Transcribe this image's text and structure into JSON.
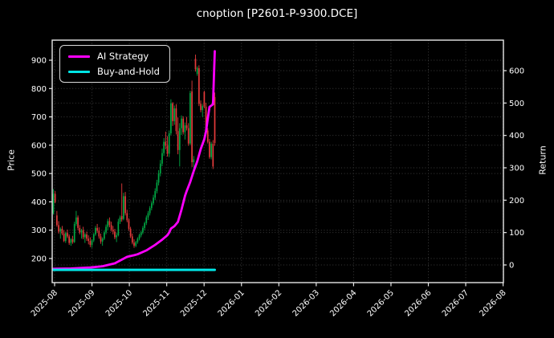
{
  "chart_data": {
    "type": "candlestick",
    "title": "cnoption [P2601-P-9300.DCE]",
    "left_axis": {
      "label": "Price",
      "ticks": [
        200,
        300,
        400,
        500,
        600,
        700,
        800,
        900
      ]
    },
    "right_axis": {
      "label": "Return",
      "ticks": [
        0,
        100,
        200,
        300,
        400,
        500,
        600
      ]
    },
    "x_ticks": [
      "2025-08",
      "2025-09",
      "2025-10",
      "2025-11",
      "2025-12",
      "2026-01",
      "2026-02",
      "2026-03",
      "2026-04",
      "2026-05",
      "2026-06",
      "2026-07",
      "2026-08"
    ],
    "grid": "dotted",
    "legend": [
      {
        "label": "AI Strategy",
        "color": "#ff00ff"
      },
      {
        "label": "Buy-and-Hold",
        "color": "#00e5e5"
      }
    ],
    "colors": {
      "background": "#000000",
      "text": "#ffffff",
      "grid": "#3a3a3a",
      "spine": "#e8e8e8",
      "up": "#00a844",
      "down": "#e43b3b",
      "ai_strategy": "#ff00ff",
      "buy_and_hold": "#00e5e5"
    },
    "candles": [
      [
        "2025-08-01",
        360,
        445,
        355,
        428
      ],
      [
        "2025-08-04",
        428,
        438,
        395,
        400
      ],
      [
        "2025-08-05",
        352,
        368,
        312,
        318
      ],
      [
        "2025-08-06",
        318,
        332,
        288,
        295
      ],
      [
        "2025-08-07",
        295,
        310,
        270,
        305
      ],
      [
        "2025-08-08",
        305,
        315,
        282,
        288
      ],
      [
        "2025-08-11",
        288,
        300,
        258,
        262
      ],
      [
        "2025-08-12",
        262,
        295,
        255,
        290
      ],
      [
        "2025-08-13",
        290,
        302,
        272,
        278
      ],
      [
        "2025-08-14",
        278,
        285,
        248,
        255
      ],
      [
        "2025-08-15",
        255,
        272,
        245,
        268
      ],
      [
        "2025-08-18",
        268,
        280,
        252,
        258
      ],
      [
        "2025-08-19",
        258,
        330,
        255,
        322
      ],
      [
        "2025-08-20",
        322,
        368,
        315,
        345
      ],
      [
        "2025-08-21",
        345,
        352,
        300,
        308
      ],
      [
        "2025-08-22",
        308,
        318,
        285,
        292
      ],
      [
        "2025-08-25",
        292,
        305,
        270,
        300
      ],
      [
        "2025-08-26",
        300,
        312,
        268,
        275
      ],
      [
        "2025-08-27",
        275,
        290,
        255,
        285
      ],
      [
        "2025-08-28",
        285,
        295,
        262,
        270
      ],
      [
        "2025-08-29",
        270,
        282,
        250,
        262
      ],
      [
        "2025-09-01",
        262,
        275,
        240,
        248
      ],
      [
        "2025-09-02",
        248,
        268,
        238,
        264
      ],
      [
        "2025-09-03",
        264,
        290,
        258,
        285
      ],
      [
        "2025-09-04",
        285,
        315,
        280,
        308
      ],
      [
        "2025-09-05",
        308,
        322,
        290,
        298
      ],
      [
        "2025-09-08",
        298,
        310,
        270,
        278
      ],
      [
        "2025-09-09",
        278,
        288,
        252,
        260
      ],
      [
        "2025-09-10",
        260,
        275,
        245,
        270
      ],
      [
        "2025-09-11",
        270,
        298,
        265,
        292
      ],
      [
        "2025-09-12",
        292,
        320,
        285,
        312
      ],
      [
        "2025-09-15",
        312,
        340,
        300,
        332
      ],
      [
        "2025-09-16",
        332,
        345,
        310,
        318
      ],
      [
        "2025-09-17",
        318,
        330,
        295,
        302
      ],
      [
        "2025-09-18",
        302,
        315,
        285,
        295
      ],
      [
        "2025-09-19",
        295,
        305,
        268,
        275
      ],
      [
        "2025-09-22",
        275,
        290,
        258,
        282
      ],
      [
        "2025-09-23",
        282,
        340,
        278,
        330
      ],
      [
        "2025-09-24",
        330,
        352,
        322,
        345
      ],
      [
        "2025-09-25",
        350,
        465,
        330,
        338
      ],
      [
        "2025-09-26",
        340,
        432,
        335,
        420
      ],
      [
        "2025-09-29",
        420,
        435,
        352,
        360
      ],
      [
        "2025-09-30",
        360,
        372,
        328,
        335
      ],
      [
        "2025-10-01",
        335,
        342,
        298,
        305
      ],
      [
        "2025-10-02",
        305,
        312,
        272,
        278
      ],
      [
        "2025-10-03",
        278,
        288,
        250,
        256
      ],
      [
        "2025-10-06",
        256,
        268,
        238,
        245
      ],
      [
        "2025-10-07",
        245,
        262,
        240,
        258
      ],
      [
        "2025-10-08",
        258,
        275,
        252,
        270
      ],
      [
        "2025-10-09",
        270,
        288,
        264,
        282
      ],
      [
        "2025-10-10",
        282,
        298,
        275,
        292
      ],
      [
        "2025-10-13",
        292,
        315,
        286,
        308
      ],
      [
        "2025-10-14",
        308,
        330,
        300,
        325
      ],
      [
        "2025-10-15",
        325,
        352,
        318,
        345
      ],
      [
        "2025-10-16",
        345,
        368,
        336,
        360
      ],
      [
        "2025-10-17",
        360,
        385,
        352,
        378
      ],
      [
        "2025-10-20",
        378,
        402,
        370,
        395
      ],
      [
        "2025-10-21",
        395,
        425,
        388,
        415
      ],
      [
        "2025-10-22",
        415,
        448,
        406,
        438
      ],
      [
        "2025-10-23",
        438,
        478,
        430,
        468
      ],
      [
        "2025-10-24",
        468,
        512,
        458,
        500
      ],
      [
        "2025-10-27",
        500,
        548,
        490,
        535
      ],
      [
        "2025-10-28",
        535,
        588,
        526,
        572
      ],
      [
        "2025-10-29",
        572,
        625,
        562,
        612
      ],
      [
        "2025-10-30",
        612,
        648,
        585,
        598
      ],
      [
        "2025-10-31",
        598,
        632,
        560,
        570
      ],
      [
        "2025-11-03",
        570,
        652,
        558,
        642
      ],
      [
        "2025-11-04",
        642,
        762,
        635,
        748
      ],
      [
        "2025-11-05",
        748,
        752,
        668,
        685
      ],
      [
        "2025-11-06",
        685,
        740,
        672,
        730
      ],
      [
        "2025-11-07",
        730,
        745,
        638,
        650
      ],
      [
        "2025-11-10",
        650,
        698,
        568,
        583
      ],
      [
        "2025-11-11",
        583,
        678,
        525,
        660
      ],
      [
        "2025-11-12",
        660,
        705,
        636,
        694
      ],
      [
        "2025-11-13",
        694,
        702,
        638,
        646
      ],
      [
        "2025-11-14",
        646,
        680,
        620,
        670
      ],
      [
        "2025-11-17",
        670,
        700,
        652,
        660
      ],
      [
        "2025-11-18",
        660,
        678,
        598,
        606
      ],
      [
        "2025-11-19",
        606,
        792,
        600,
        784
      ],
      [
        "2025-11-20",
        790,
        828,
        523,
        540
      ],
      [
        "2025-11-21",
        540,
        562,
        505,
        550
      ],
      [
        "2025-11-24",
        905,
        920,
        860,
        868
      ],
      [
        "2025-11-25",
        852,
        878,
        845,
        872
      ],
      [
        "2025-11-26",
        872,
        882,
        738,
        746
      ],
      [
        "2025-11-27",
        746,
        758,
        716,
        724
      ],
      [
        "2025-11-28",
        724,
        745,
        700,
        738
      ],
      [
        "2025-12-01",
        788,
        792,
        730,
        736
      ],
      [
        "2025-12-02",
        736,
        750,
        645,
        652
      ],
      [
        "2025-12-03",
        652,
        660,
        606,
        612
      ],
      [
        "2025-12-04",
        612,
        622,
        552,
        558
      ],
      [
        "2025-12-05",
        558,
        612,
        550,
        605
      ],
      [
        "2025-12-08",
        605,
        618,
        516,
        525
      ],
      [
        "2025-12-09",
        770,
        786,
        598,
        608
      ]
    ],
    "series": [
      {
        "name": "AI Strategy",
        "axis": "right",
        "color": "#ff00ff",
        "width": 2.8,
        "points": [
          [
            0,
            -12
          ],
          [
            10,
            -11
          ],
          [
            21,
            -8
          ],
          [
            28,
            -4
          ],
          [
            35,
            5
          ],
          [
            42,
            25
          ],
          [
            46,
            30
          ],
          [
            48,
            33
          ],
          [
            53,
            45
          ],
          [
            58,
            62
          ],
          [
            62,
            78
          ],
          [
            65,
            92
          ],
          [
            66,
            100
          ],
          [
            67,
            112
          ],
          [
            69,
            120
          ],
          [
            71,
            133
          ],
          [
            73,
            170
          ],
          [
            75,
            213
          ],
          [
            76,
            228
          ],
          [
            78,
            256
          ],
          [
            80,
            290
          ],
          [
            82,
            320
          ],
          [
            84,
            358
          ],
          [
            86,
            388
          ],
          [
            87,
            412
          ],
          [
            88,
            452
          ],
          [
            89,
            488
          ],
          [
            91,
            496
          ],
          [
            92,
            660
          ]
        ]
      },
      {
        "name": "Buy-and-Hold",
        "axis": "right",
        "color": "#00e5e5",
        "width": 3,
        "points": [
          [
            0,
            -15
          ],
          [
            92,
            -15
          ]
        ]
      }
    ]
  }
}
